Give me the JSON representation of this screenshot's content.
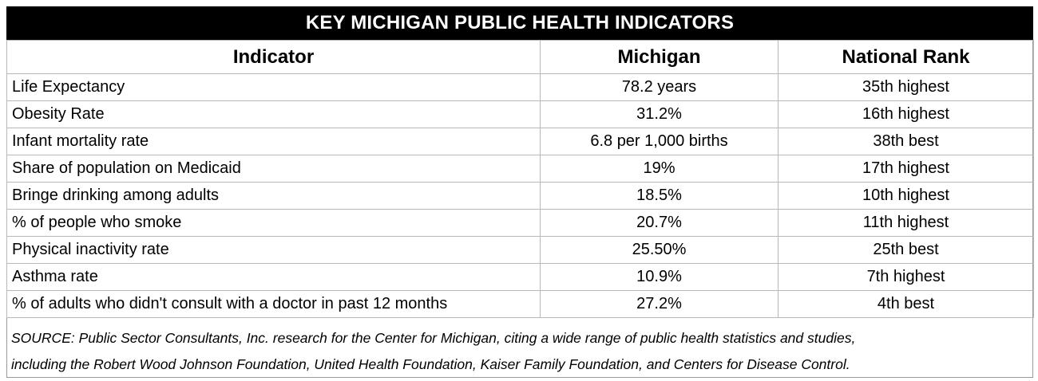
{
  "title": "KEY MICHIGAN PUBLIC HEALTH INDICATORS",
  "headers": {
    "indicator": "Indicator",
    "michigan": "Michigan",
    "rank": "National Rank"
  },
  "rows": [
    {
      "indicator": "Life Expectancy",
      "michigan": "78.2 years",
      "rank": "35th highest"
    },
    {
      "indicator": "Obesity Rate",
      "michigan": "31.2%",
      "rank": "16th highest"
    },
    {
      "indicator": "Infant mortality rate",
      "michigan": "6.8 per 1,000 births",
      "rank": "38th best"
    },
    {
      "indicator": "Share of population on Medicaid",
      "michigan": "19%",
      "rank": "17th highest"
    },
    {
      "indicator": "Bringe drinking among adults",
      "michigan": "18.5%",
      "rank": "10th highest"
    },
    {
      "indicator": "% of people who smoke",
      "michigan": "20.7%",
      "rank": "11th highest"
    },
    {
      "indicator": "Physical inactivity rate",
      "michigan": "25.50%",
      "rank": "25th best"
    },
    {
      "indicator": "Asthma rate",
      "michigan": "10.9%",
      "rank": "7th highest"
    },
    {
      "indicator": "% of adults who didn't consult with a doctor in past 12 months",
      "michigan": "27.2%",
      "rank": "4th best"
    }
  ],
  "source": {
    "line1": "SOURCE: Public Sector Consultants, Inc. research for the Center for Michigan, citing a wide range of public health statistics and studies,",
    "line2": "including the Robert Wood Johnson Foundation, United Health Foundation, Kaiser Family Foundation, and Centers for Disease Control."
  }
}
